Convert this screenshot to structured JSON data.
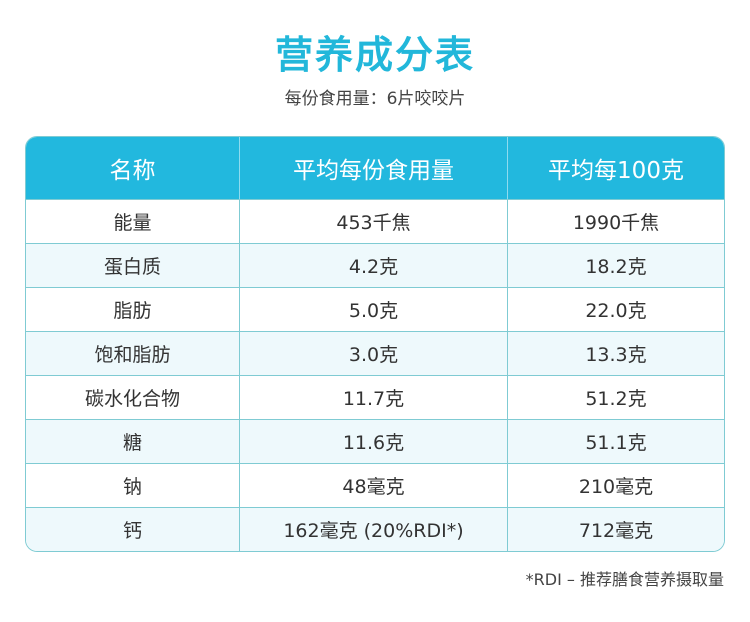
{
  "title": "营养成分表",
  "subtitle": "每份食用量：6片咬咬片",
  "colors": {
    "accent": "#22b8de",
    "row_alt": "#eef9fc",
    "border": "#7fcbd3"
  },
  "table": {
    "headers": [
      "名称",
      "平均每份食用量",
      "平均每100克"
    ],
    "rows": [
      [
        "能量",
        "453千焦",
        "1990千焦"
      ],
      [
        "蛋白质",
        "4.2克",
        "18.2克"
      ],
      [
        "脂肪",
        "5.0克",
        "22.0克"
      ],
      [
        "饱和脂肪",
        "3.0克",
        "13.3克"
      ],
      [
        "碳水化合物",
        "11.7克",
        "51.2克"
      ],
      [
        "糖",
        "11.6克",
        "51.1克"
      ],
      [
        "钠",
        "48毫克",
        "210毫克"
      ],
      [
        "钙",
        "162毫克 (20%RDI*)",
        "712毫克"
      ]
    ]
  },
  "footnote": "*RDI – 推荐膳食营养摄取量"
}
